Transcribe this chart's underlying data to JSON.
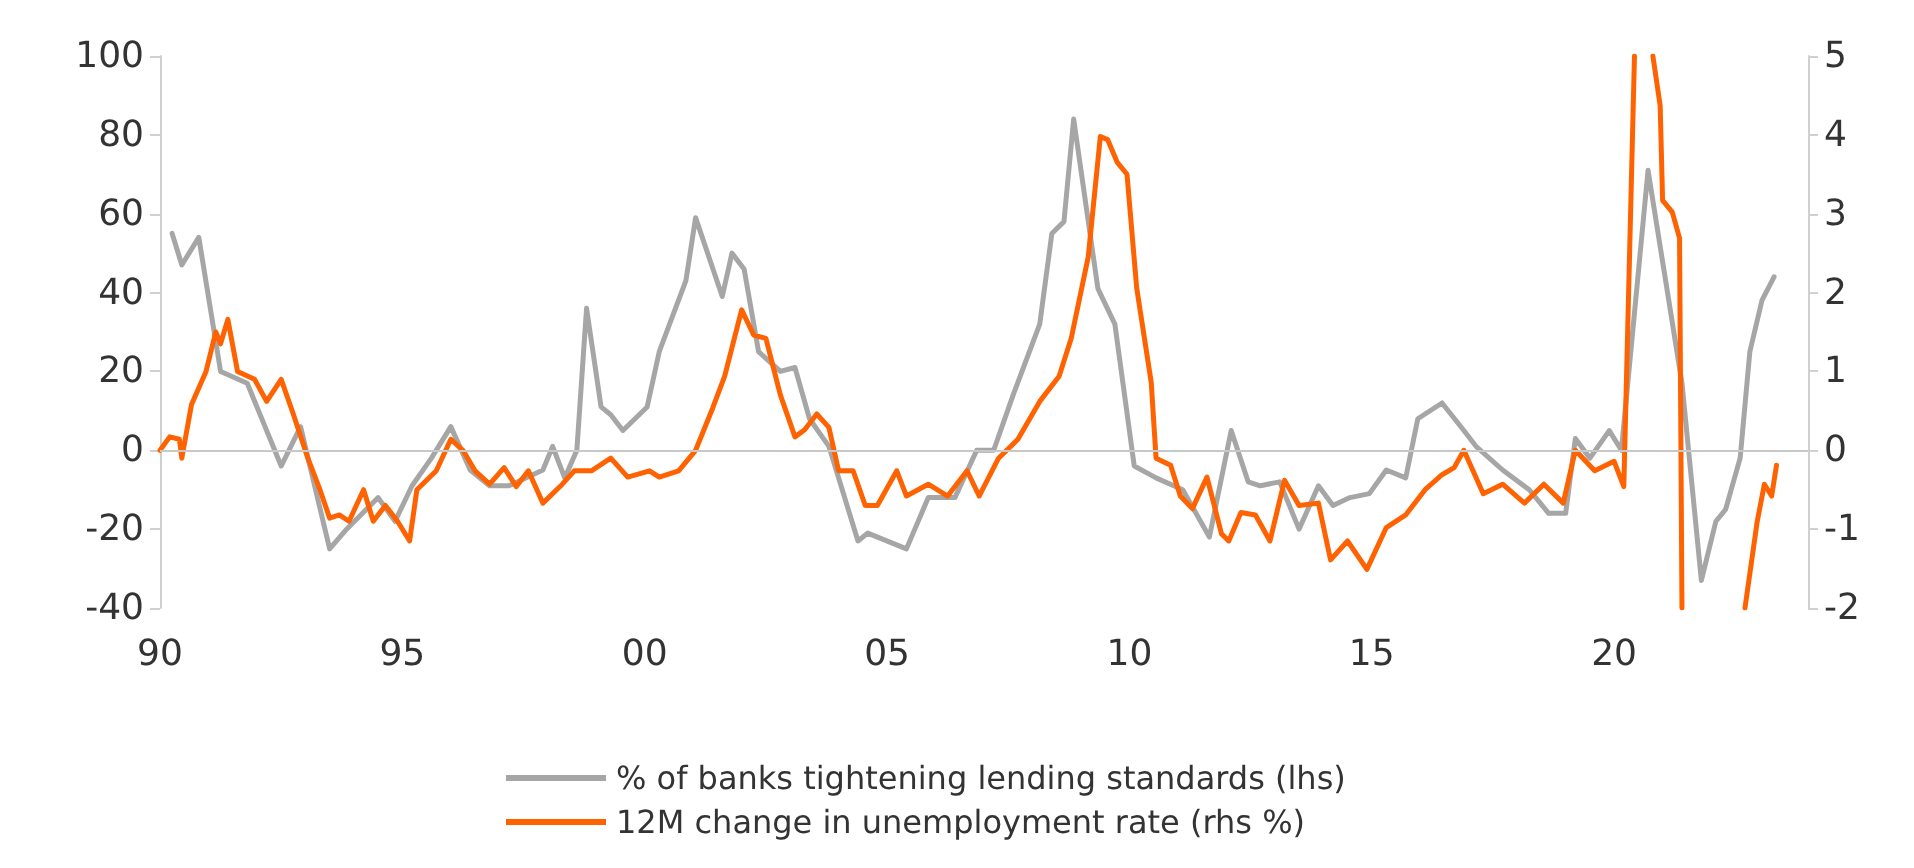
{
  "chart_data": {
    "type": "line",
    "xlim": [
      1990,
      2024
    ],
    "xticks": [
      {
        "value": 1990,
        "label": "90"
      },
      {
        "value": 1995,
        "label": "95"
      },
      {
        "value": 2000,
        "label": "00"
      },
      {
        "value": 2005,
        "label": "05"
      },
      {
        "value": 2010,
        "label": "10"
      },
      {
        "value": 2015,
        "label": "15"
      },
      {
        "value": 2020,
        "label": "20"
      }
    ],
    "ylim": [
      -40,
      100
    ],
    "yticks": [
      -40,
      -20,
      0,
      20,
      40,
      60,
      80,
      100
    ],
    "y2lim": [
      -2,
      5
    ],
    "y2ticks": [
      -2,
      -1,
      0,
      1,
      2,
      3,
      4,
      5
    ],
    "grid": false,
    "legend": "bottom",
    "line_style": "solid",
    "marker": "none",
    "ref_lines": [
      {
        "axis": "y",
        "value": 0,
        "color": "#c8c8c8"
      }
    ],
    "series": [
      {
        "name": "% of banks tightening lending standards (lhs)",
        "color": "#a6a6a6",
        "x": [
          1990.25,
          1990.45,
          1990.8,
          1991.25,
          1991.8,
          1992.5,
          1992.9,
          1993.5,
          1993.85,
          1994.5,
          1994.85,
          1995.2,
          1995.6,
          1996,
          1996.4,
          1996.8,
          1997.2,
          1997.9,
          1998.1,
          1998.35,
          1998.6,
          1998.8,
          1999.1,
          1999.3,
          1999.55,
          2000.05,
          2000.3,
          2000.85,
          2001.05,
          2001.6,
          2001.8,
          2002.05,
          2002.35,
          2002.8,
          2003.1,
          2003.4,
          2003.8,
          2004.2,
          2004.4,
          2004.6,
          2005.4,
          2005.85,
          2006.4,
          2006.85,
          2007.2,
          2007.6,
          2008.15,
          2008.4,
          2008.65,
          2008.85,
          2009.35,
          2009.7,
          2010.1,
          2010.55,
          2011.1,
          2011.65,
          2012.1,
          2012.45,
          2012.7,
          2013.1,
          2013.5,
          2013.9,
          2014.2,
          2014.55,
          2014.95,
          2015.3,
          2015.7,
          2015.95,
          2016.45,
          2016.9,
          2017.15,
          2017.7,
          2018.25,
          2018.65,
          2019,
          2019.2,
          2019.5,
          2019.9,
          2020.15,
          2020.7,
          2021.4,
          2021.8,
          2022.1,
          2022.3,
          2022.6,
          2022.8,
          2023.05,
          2023.3
        ],
        "values": [
          55,
          47,
          54,
          20,
          17,
          -4,
          6,
          -25,
          -20,
          -12,
          -18,
          -9,
          -2,
          6,
          -5,
          -9,
          -9,
          -5,
          1,
          -7,
          0,
          36,
          11,
          9,
          5,
          11,
          25,
          43,
          59,
          39,
          50,
          46,
          25,
          20,
          21,
          8,
          1,
          -15,
          -23,
          -21,
          -25,
          -12,
          -12,
          0,
          0,
          14,
          32,
          55,
          58,
          84,
          41,
          32,
          -4,
          -7,
          -10,
          -22,
          5,
          -8,
          -9,
          -8,
          -20,
          -9,
          -14,
          -12,
          -11,
          -5,
          -7,
          8,
          12,
          5,
          1,
          -5,
          -10,
          -16,
          -16,
          3,
          -2,
          5,
          0,
          71,
          17,
          -33,
          -18,
          -15,
          -2,
          25,
          38,
          44
        ]
      },
      {
        "name": "12M change in unemployment rate (rhs %)",
        "color": "#ff6200",
        "axis": "y2",
        "x": [
          1990,
          1990.2,
          1990.4,
          1990.45,
          1990.65,
          1990.95,
          1991.15,
          1991.25,
          1991.4,
          1991.6,
          1991.95,
          1992.2,
          1992.5,
          1992.75,
          1993.05,
          1993.3,
          1993.5,
          1993.7,
          1993.9,
          1994.2,
          1994.4,
          1994.65,
          1994.9,
          1995.15,
          1995.3,
          1995.7,
          1996,
          1996.25,
          1996.5,
          1996.8,
          1997.1,
          1997.35,
          1997.6,
          1997.9,
          1998.3,
          1998.55,
          1998.9,
          1999.3,
          1999.65,
          2000.1,
          2000.3,
          2000.7,
          2001.05,
          2001.4,
          2001.65,
          2002,
          2002.25,
          2002.5,
          2002.8,
          2003.1,
          2003.3,
          2003.55,
          2003.8,
          2004,
          2004.3,
          2004.55,
          2004.8,
          2005.2,
          2005.4,
          2005.85,
          2006.25,
          2006.65,
          2006.9,
          2007.3,
          2007.7,
          2008.15,
          2008.55,
          2008.8,
          2009.15,
          2009.4,
          2009.55,
          2009.75,
          2009.95,
          2010.15,
          2010.45,
          2010.55,
          2010.85,
          2011.05,
          2011.3,
          2011.6,
          2011.9,
          2012.05,
          2012.3,
          2012.6,
          2012.9,
          2013.2,
          2013.5,
          2013.9,
          2014.15,
          2014.5,
          2014.9,
          2015.3,
          2015.7,
          2016.1,
          2016.45,
          2016.7,
          2016.9,
          2017.3,
          2017.7,
          2018.15,
          2018.55,
          2018.95,
          2019.2,
          2019.6,
          2020,
          2020.2,
          2020.42,
          2020.6,
          2020.8,
          2020.95,
          2021,
          2021.2,
          2021.35,
          2021.4,
          2022,
          2022.7,
          2022.95,
          2023.1,
          2023.25,
          2023.35
        ],
        "values": [
          0,
          0.17,
          0.14,
          -0.1,
          0.58,
          1,
          1.5,
          1.35,
          1.66,
          1,
          0.9,
          0.62,
          0.9,
          0.46,
          -0.1,
          -0.5,
          -0.86,
          -0.82,
          -0.9,
          -0.5,
          -0.9,
          -0.7,
          -0.9,
          -1.15,
          -0.5,
          -0.26,
          0.14,
          0,
          -0.26,
          -0.43,
          -0.22,
          -0.46,
          -0.26,
          -0.67,
          -0.43,
          -0.26,
          -0.26,
          -0.1,
          -0.34,
          -0.26,
          -0.34,
          -0.26,
          0,
          0.53,
          0.94,
          1.78,
          1.46,
          1.42,
          0.7,
          0.17,
          0.26,
          0.46,
          0.29,
          -0.26,
          -0.26,
          -0.7,
          -0.7,
          -0.26,
          -0.58,
          -0.43,
          -0.58,
          -0.26,
          -0.58,
          -0.1,
          0.14,
          0.62,
          0.94,
          1.42,
          2.45,
          3.98,
          3.94,
          3.65,
          3.5,
          2.06,
          0.86,
          -0.1,
          -0.19,
          -0.58,
          -0.74,
          -0.34,
          -1.06,
          -1.15,
          -0.79,
          -0.82,
          -1.15,
          -0.38,
          -0.7,
          -0.67,
          -1.39,
          -1.15,
          -1.51,
          -0.98,
          -0.82,
          -0.5,
          -0.31,
          -0.22,
          0,
          -0.55,
          -0.43,
          -0.67,
          -0.43,
          -0.67,
          0,
          -0.26,
          -0.14,
          -0.46,
          5,
          null,
          5,
          4.37,
          3.17,
          3.02,
          2.69,
          -2,
          null,
          -2,
          -0.91,
          -0.43,
          -0.58,
          -0.19
        ]
      }
    ]
  }
}
